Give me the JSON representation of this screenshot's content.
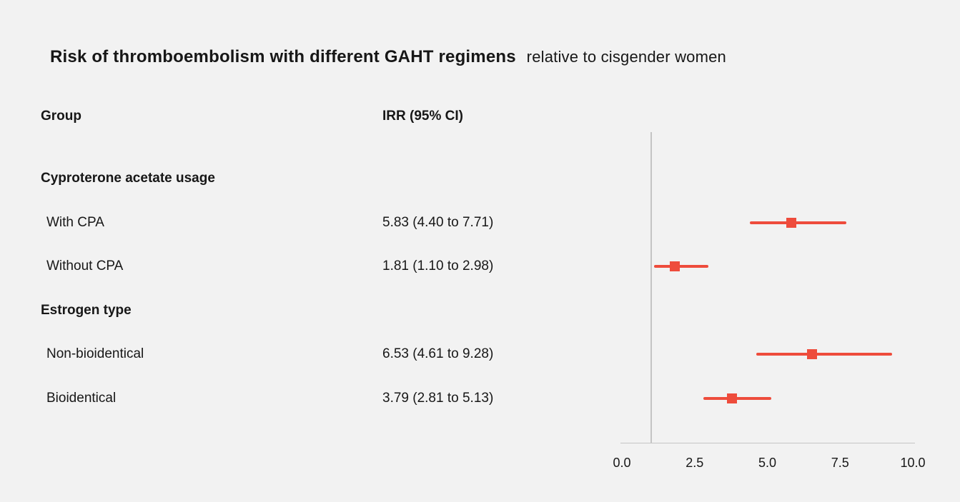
{
  "title": {
    "main": "Risk of thromboemboli­sm with different GAHT regimens",
    "suffix": "relative to cisgender women"
  },
  "columns": {
    "group": "Group",
    "irr": "IRR (95% CI)"
  },
  "chart_data": {
    "type": "forest",
    "title": "Risk of thromboembolism with different GAHT regimens relative to cisgender women",
    "xlabel": "",
    "ylabel": "",
    "x_axis": {
      "min": 0,
      "max": 10,
      "ticks": [
        "0.0",
        "2.5",
        "5.0",
        "7.5",
        "10.0"
      ],
      "tick_values": [
        0,
        2.5,
        5,
        7.5,
        10
      ],
      "reference_line": 1
    },
    "rows": [
      {
        "kind": "header",
        "label": "Cyproterone acetate usage"
      },
      {
        "kind": "item",
        "label": "With CPA",
        "text": "5.83 (4.40 to 7.71)",
        "est": 5.83,
        "lo": 4.4,
        "hi": 7.71
      },
      {
        "kind": "item",
        "label": "Without CPA",
        "text": "1.81 (1.10 to 2.98)",
        "est": 1.81,
        "lo": 1.1,
        "hi": 2.98
      },
      {
        "kind": "header",
        "label": "Estrogen type"
      },
      {
        "kind": "item",
        "label": "Non-bioidentical",
        "text": "6.53 (4.61 to 9.28)",
        "est": 6.53,
        "lo": 4.61,
        "hi": 9.28
      },
      {
        "kind": "item",
        "label": "Bioidentical",
        "text": "3.79 (2.81 to 5.13)",
        "est": 3.79,
        "lo": 2.81,
        "hi": 5.13
      }
    ],
    "marker_color": "#ee4c3c",
    "axis_color": "#c4c4c4",
    "background_color": "#f2f2f2",
    "text_color": "#171717",
    "legend": "none",
    "grid": "off"
  }
}
